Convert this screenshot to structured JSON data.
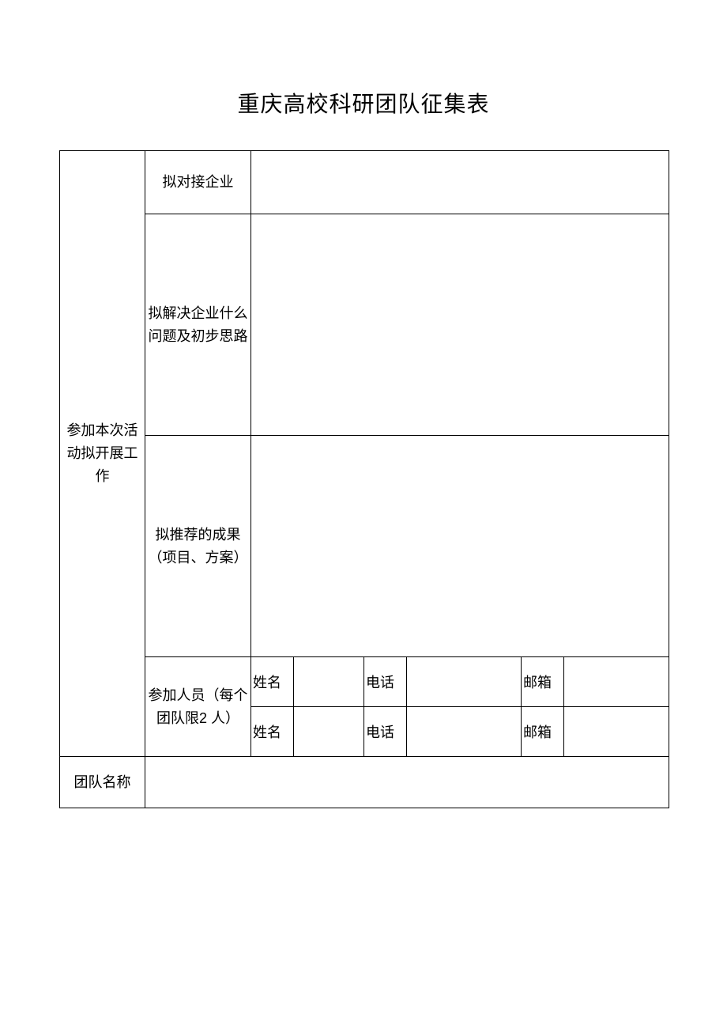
{
  "title": "重庆高校科研团队征集表",
  "section_main": "参加本次活动拟开展工作",
  "rows": {
    "enterprise": "拟对接企业",
    "problem": "拟解决企业什么问题及初步思路",
    "achievement": "拟推荐的成果（项目、方案）",
    "participants": "参加人员（每个团队限2 人）",
    "team_name": "团队名称"
  },
  "person_labels": {
    "name": "姓名",
    "phone": "电话",
    "email": "邮箱"
  },
  "values": {
    "enterprise": "",
    "problem": "",
    "achievement": "",
    "team_name": "",
    "p1": {
      "name": "",
      "phone": "",
      "email": ""
    },
    "p2": {
      "name": "",
      "phone": "",
      "email": ""
    }
  },
  "style": {
    "background_color": "#ffffff",
    "border_color": "#000000",
    "text_color": "#000000",
    "title_fontsize": 28,
    "label_fontsize": 18
  }
}
